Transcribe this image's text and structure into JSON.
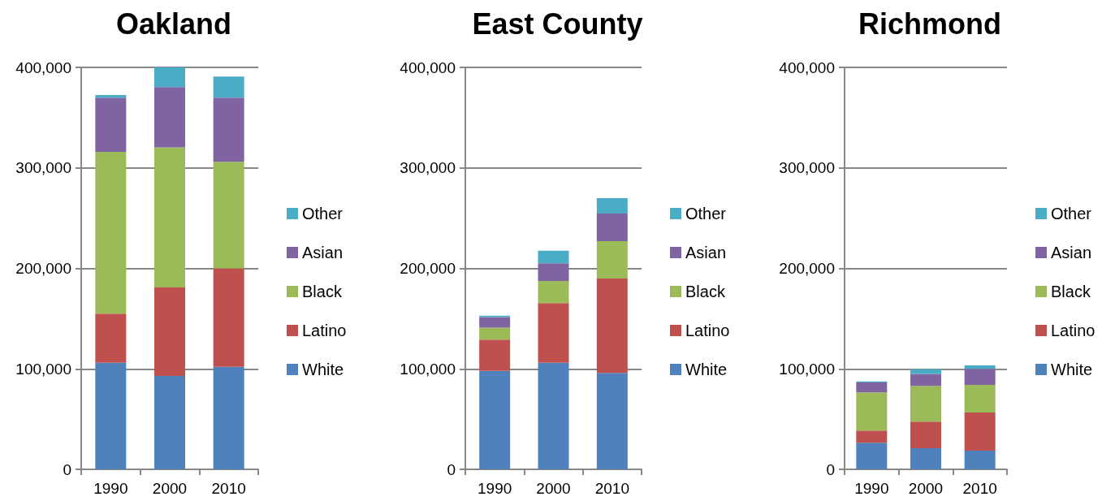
{
  "chart_data": [
    {
      "type": "bar",
      "title": "Oakland",
      "categories": [
        "1990",
        "2000",
        "2010"
      ],
      "stacked": true,
      "grid": "y",
      "legend": "right",
      "ylim": [
        0,
        400000
      ],
      "yticks": [
        {
          "value": 0,
          "label": "0"
        },
        {
          "value": 100000,
          "label": "100,000"
        },
        {
          "value": 200000,
          "label": "200,000"
        },
        {
          "value": 300000,
          "label": "300,000"
        },
        {
          "value": 400000,
          "label": "400,000"
        }
      ],
      "series": [
        {
          "name": "White",
          "color": "#4f81bd",
          "values": [
            106000,
            93000,
            102000
          ]
        },
        {
          "name": "Latino",
          "color": "#c0504d",
          "values": [
            49000,
            88000,
            98000
          ]
        },
        {
          "name": "Black",
          "color": "#9bbb59",
          "values": [
            161000,
            139500,
            106000
          ]
        },
        {
          "name": "Asian",
          "color": "#8064a2",
          "values": [
            54000,
            60000,
            64000
          ]
        },
        {
          "name": "Other",
          "color": "#4bacc6",
          "values": [
            2500,
            20000,
            21000
          ]
        }
      ]
    },
    {
      "type": "bar",
      "title": "East County",
      "categories": [
        "1990",
        "2000",
        "2010"
      ],
      "stacked": true,
      "grid": "y",
      "legend": "right",
      "ylim": [
        0,
        400000
      ],
      "yticks": [
        {
          "value": 0,
          "label": "0"
        },
        {
          "value": 100000,
          "label": "100,000"
        },
        {
          "value": 200000,
          "label": "200,000"
        },
        {
          "value": 300000,
          "label": "300,000"
        },
        {
          "value": 400000,
          "label": "400,000"
        }
      ],
      "series": [
        {
          "name": "White",
          "color": "#4f81bd",
          "values": [
            98000,
            106000,
            96000
          ]
        },
        {
          "name": "Latino",
          "color": "#c0504d",
          "values": [
            31000,
            59500,
            94000
          ]
        },
        {
          "name": "Black",
          "color": "#9bbb59",
          "values": [
            12000,
            22000,
            37000
          ]
        },
        {
          "name": "Asian",
          "color": "#8064a2",
          "values": [
            10500,
            17500,
            27500
          ]
        },
        {
          "name": "Other",
          "color": "#4bacc6",
          "values": [
            1500,
            12500,
            15500
          ]
        }
      ]
    },
    {
      "type": "bar",
      "title": "Richmond",
      "categories": [
        "1990",
        "2000",
        "2010"
      ],
      "stacked": true,
      "grid": "y",
      "legend": "right",
      "ylim": [
        0,
        400000
      ],
      "yticks": [
        {
          "value": 0,
          "label": "0"
        },
        {
          "value": 100000,
          "label": "100,000"
        },
        {
          "value": 200000,
          "label": "200,000"
        },
        {
          "value": 300000,
          "label": "300,000"
        },
        {
          "value": 400000,
          "label": "400,000"
        }
      ],
      "series": [
        {
          "name": "White",
          "color": "#4f81bd",
          "values": [
            26500,
            21000,
            18500
          ]
        },
        {
          "name": "Latino",
          "color": "#c0504d",
          "values": [
            12000,
            26500,
            38000
          ]
        },
        {
          "name": "Black",
          "color": "#9bbb59",
          "values": [
            38000,
            35500,
            27500
          ]
        },
        {
          "name": "Asian",
          "color": "#8064a2",
          "values": [
            10000,
            12000,
            16000
          ]
        },
        {
          "name": "Other",
          "color": "#4bacc6",
          "values": [
            1000,
            4500,
            3500
          ]
        }
      ]
    }
  ]
}
